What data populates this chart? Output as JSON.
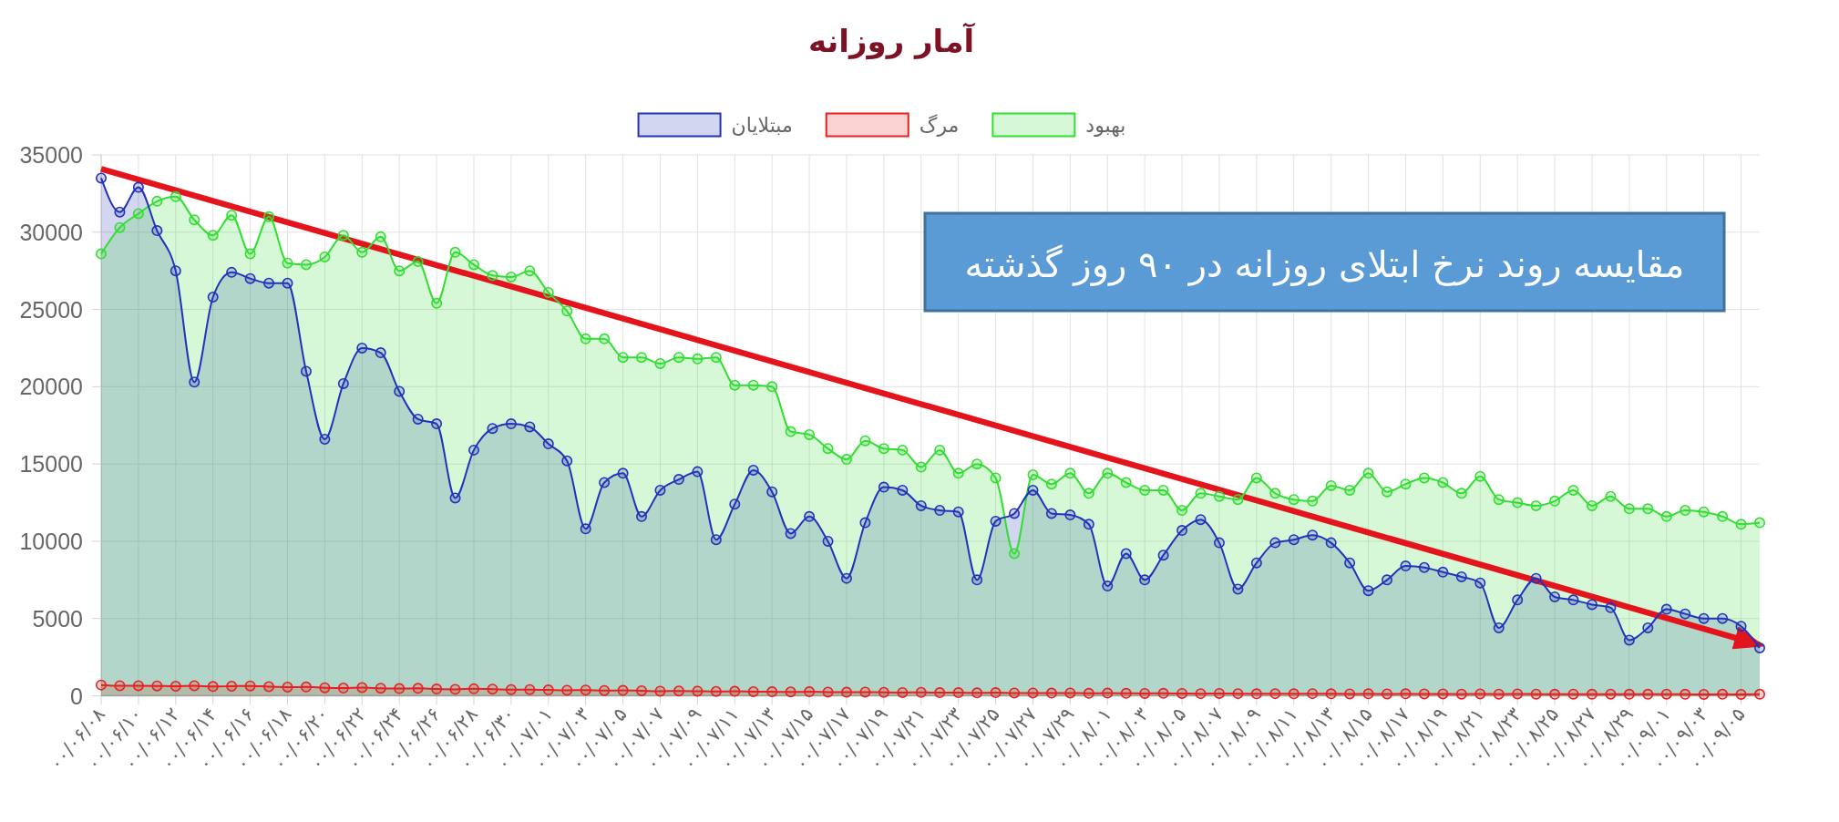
{
  "chart_data": {
    "type": "area",
    "title": "آمار روزانه",
    "annotations": [
      "مقایسه روند نرخ ابتلای روزانه در ۹۰ روز گذشته"
    ],
    "categories": [
      "۰۰/۰۶/۰۸",
      null,
      "۰۰/۰۶/۱۰",
      null,
      "۰۰/۰۶/۱۲",
      null,
      "۰۰/۰۶/۱۴",
      null,
      "۰۰/۰۶/۱۶",
      null,
      "۰۰/۰۶/۱۸",
      null,
      "۰۰/۰۶/۲۰",
      null,
      "۰۰/۰۶/۲۲",
      null,
      "۰۰/۰۶/۲۴",
      null,
      "۰۰/۰۶/۲۶",
      null,
      "۰۰/۰۶/۲۸",
      null,
      "۰۰/۰۶/۳۰",
      null,
      "۰۰/۰۷/۰۱",
      null,
      "۰۰/۰۷/۰۳",
      null,
      "۰۰/۰۷/۰۵",
      null,
      "۰۰/۰۷/۰۷",
      null,
      "۰۰/۰۷/۰۹",
      null,
      "۰۰/۰۷/۱۱",
      null,
      "۰۰/۰۷/۱۳",
      null,
      "۰۰/۰۷/۱۵",
      null,
      "۰۰/۰۷/۱۷",
      null,
      "۰۰/۰۷/۱۹",
      null,
      "۰۰/۰۷/۲۱",
      null,
      "۰۰/۰۷/۲۳",
      null,
      "۰۰/۰۷/۲۵",
      null,
      "۰۰/۰۷/۲۷",
      null,
      "۰۰/۰۷/۲۹",
      null,
      "۰۰/۰۸/۰۱",
      null,
      "۰۰/۰۸/۰۳",
      null,
      "۰۰/۰۸/۰۵",
      null,
      "۰۰/۰۸/۰۷",
      null,
      "۰۰/۰۸/۰۹",
      null,
      "۰۰/۰۸/۱۱",
      null,
      "۰۰/۰۸/۱۳",
      null,
      "۰۰/۰۸/۱۵",
      null,
      "۰۰/۰۸/۱۷",
      null,
      "۰۰/۰۸/۱۹",
      null,
      "۰۰/۰۸/۲۱",
      null,
      "۰۰/۰۸/۲۳",
      null,
      "۰۰/۰۸/۲۵",
      null,
      "۰۰/۰۸/۲۷",
      null,
      "۰۰/۰۸/۲۹",
      null,
      "۰۰/۰۹/۰۱",
      null,
      "۰۰/۰۹/۰۳",
      null,
      "۰۰/۰۹/۰۵",
      null
    ],
    "series": [
      {
        "name": "مبتلایان",
        "color": "#2233bb",
        "values": [
          33500,
          31300,
          32900,
          30100,
          27500,
          20300,
          25800,
          27400,
          27000,
          26700,
          26700,
          21000,
          16600,
          20200,
          22500,
          22200,
          19700,
          17900,
          17600,
          12800,
          15900,
          17300,
          17600,
          17400,
          16300,
          15200,
          10800,
          13800,
          14400,
          11600,
          13300,
          14000,
          14500,
          10100,
          12400,
          14600,
          13200,
          10500,
          11600,
          10000,
          7600,
          11200,
          13500,
          13300,
          12300,
          12000,
          11900,
          7500,
          11300,
          11800,
          13300,
          11800,
          11700,
          11100,
          7100,
          9200,
          7500,
          9100,
          10700,
          11400,
          9900,
          6900,
          8600,
          9900,
          10100,
          10400,
          9900,
          8600,
          6800,
          7500,
          8400,
          8300,
          8000,
          7700,
          7300,
          4400,
          6200,
          7600,
          6400,
          6200,
          5900,
          5700,
          3600,
          4400,
          5600,
          5300,
          5000,
          5000,
          4500,
          3100
        ]
      },
      {
        "name": "مرگ",
        "color": "#e82020",
        "values": [
          700,
          650,
          650,
          640,
          620,
          650,
          600,
          620,
          640,
          590,
          560,
          570,
          520,
          500,
          530,
          490,
          470,
          480,
          440,
          420,
          450,
          430,
          400,
          400,
          380,
          360,
          370,
          340,
          350,
          330,
          300,
          310,
          300,
          280,
          290,
          270,
          260,
          250,
          260,
          240,
          230,
          240,
          220,
          210,
          220,
          200,
          200,
          190,
          200,
          180,
          180,
          170,
          180,
          160,
          170,
          160,
          150,
          160,
          150,
          140,
          150,
          140,
          130,
          140,
          130,
          140,
          130,
          120,
          130,
          120,
          130,
          120,
          120,
          110,
          120,
          110,
          120,
          110,
          100,
          110,
          100,
          110,
          100,
          100,
          110,
          100,
          90,
          100,
          90,
          100
        ]
      },
      {
        "name": "بهبود",
        "color": "#33dd33",
        "values": [
          28600,
          30300,
          31200,
          32000,
          32300,
          30800,
          29800,
          31100,
          28600,
          31000,
          28000,
          27900,
          28400,
          29800,
          28700,
          29700,
          27500,
          28100,
          25400,
          28700,
          27900,
          27200,
          27100,
          27500,
          26100,
          24900,
          23100,
          23100,
          21900,
          21900,
          21500,
          21900,
          21800,
          21900,
          20100,
          20100,
          20000,
          17100,
          16900,
          16000,
          15300,
          16500,
          16000,
          15900,
          14800,
          15900,
          14400,
          15000,
          14100,
          9200,
          14300,
          13700,
          14400,
          13100,
          14400,
          13800,
          13300,
          13300,
          12000,
          13100,
          12900,
          12700,
          14100,
          13100,
          12700,
          12600,
          13600,
          13300,
          14400,
          13200,
          13700,
          14100,
          13800,
          13100,
          14200,
          12700,
          12500,
          12300,
          12600,
          13300,
          12300,
          12900,
          12100,
          12100,
          11600,
          12000,
          11900,
          11600,
          11100,
          11200
        ]
      },
      {
        "type": "line",
        "color": "#e3141b",
        "marker": "none",
        "values": [
          34100,
          null,
          null,
          null,
          null,
          null,
          null,
          null,
          null,
          null,
          null,
          null,
          null,
          null,
          null,
          null,
          null,
          null,
          null,
          null,
          null,
          null,
          null,
          null,
          null,
          null,
          null,
          null,
          null,
          null,
          null,
          null,
          null,
          null,
          null,
          null,
          null,
          null,
          null,
          null,
          null,
          null,
          null,
          null,
          null,
          null,
          null,
          null,
          null,
          null,
          null,
          null,
          null,
          null,
          null,
          null,
          null,
          null,
          null,
          null,
          null,
          null,
          null,
          null,
          null,
          null,
          null,
          null,
          null,
          null,
          null,
          null,
          null,
          null,
          null,
          null,
          null,
          null,
          null,
          null,
          null,
          null,
          null,
          null,
          null,
          null,
          null,
          null,
          null,
          3300
        ]
      }
    ],
    "ylim": [
      0,
      35000
    ],
    "yticks": [
      0,
      5000,
      10000,
      15000,
      20000,
      25000,
      30000,
      35000
    ],
    "grid": true,
    "legend": "top",
    "marker": "circle",
    "line_style": "solid"
  }
}
